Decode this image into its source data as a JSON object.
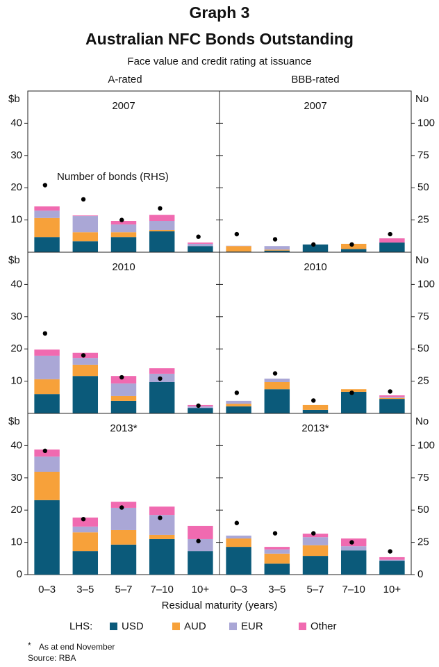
{
  "title": "Graph 3",
  "subtitle": "Australian NFC Bonds Outstanding",
  "note": "Face value and credit rating at issuance",
  "columns": [
    "A-rated",
    "BBB-rated"
  ],
  "xlabel": "Residual maturity (years)",
  "legend": {
    "label": "LHS:",
    "items": [
      {
        "name": "USD",
        "color": "#0b5a7a"
      },
      {
        "name": "AUD",
        "color": "#f7a13a"
      },
      {
        "name": "EUR",
        "color": "#aaa7d6"
      },
      {
        "name": "Other",
        "color": "#f06ab0"
      }
    ]
  },
  "footnote_mark": "*",
  "footnote": "As at end November",
  "source": "Source: RBA",
  "chart_data": [
    {
      "type": "bar",
      "stacked": true,
      "title": "2007",
      "ylabel": "$b",
      "ylim": [
        0,
        50
      ],
      "yticks": [
        10,
        20,
        30,
        40
      ],
      "y2lim": [
        0,
        125
      ],
      "annotation": "Number of bonds (RHS)",
      "series": [
        {
          "values": [
            4.7,
            3.4,
            4.7,
            6.5,
            1.9
          ]
        },
        {
          "values": [
            5.9,
            2.8,
            1.5,
            0.4,
            0
          ]
        },
        {
          "values": [
            2.3,
            5.0,
            2.4,
            2.8,
            0.7
          ]
        },
        {
          "values": [
            1.3,
            0.2,
            1.1,
            1.9,
            0.4
          ]
        }
      ],
      "bonds": {
        "axis": "y2",
        "color": "#000000",
        "values": [
          52,
          41,
          25,
          34,
          12
        ]
      }
    },
    {
      "type": "bar",
      "stacked": true,
      "title": "2007",
      "y2label": "No",
      "ylim": [
        0,
        50
      ],
      "y2lim": [
        0,
        125
      ],
      "y2ticks": [
        25,
        50,
        75,
        100
      ],
      "series": [
        {
          "values": [
            0.2,
            0.5,
            2.4,
            1.0,
            3.0
          ]
        },
        {
          "values": [
            1.7,
            0.3,
            0,
            1.6,
            0
          ]
        },
        {
          "values": [
            0.1,
            1.1,
            0,
            0,
            0
          ]
        },
        {
          "values": [
            0,
            0,
            0,
            0,
            1.3
          ]
        }
      ],
      "bonds": {
        "axis": "y2",
        "color": "#000000",
        "values": [
          14,
          10,
          6,
          6,
          14
        ]
      }
    },
    {
      "type": "bar",
      "stacked": true,
      "title": "2010",
      "ylabel": "$b",
      "ylim": [
        0,
        50
      ],
      "yticks": [
        10,
        20,
        30,
        40
      ],
      "y2lim": [
        0,
        125
      ],
      "series": [
        {
          "values": [
            6.0,
            11.6,
            3.9,
            9.7,
            1.7
          ]
        },
        {
          "values": [
            4.6,
            3.5,
            1.5,
            0,
            0
          ]
        },
        {
          "values": [
            7.3,
            2.1,
            3.9,
            2.6,
            0.5
          ]
        },
        {
          "values": [
            1.9,
            1.6,
            2.3,
            1.7,
            0.4
          ]
        }
      ],
      "bonds": {
        "axis": "y2",
        "color": "#000000",
        "values": [
          62,
          45,
          28,
          27,
          6
        ]
      }
    },
    {
      "type": "bar",
      "stacked": true,
      "title": "2010",
      "y2label": "No",
      "ylim": [
        0,
        50
      ],
      "y2lim": [
        0,
        125
      ],
      "y2ticks": [
        25,
        50,
        75,
        100
      ],
      "series": [
        {
          "values": [
            2.2,
            7.5,
            1.1,
            6.7,
            4.5
          ]
        },
        {
          "values": [
            0.8,
            2.2,
            1.5,
            0.8,
            0.3
          ]
        },
        {
          "values": [
            0.9,
            1.1,
            0,
            0,
            0.3
          ]
        },
        {
          "values": [
            0,
            0,
            0,
            0,
            0.5
          ]
        }
      ],
      "bonds": {
        "axis": "y2",
        "color": "#000000",
        "values": [
          16,
          31,
          10,
          16,
          17
        ]
      }
    },
    {
      "type": "bar",
      "stacked": true,
      "title": "2013*",
      "ylabel": "$b",
      "ylim": [
        0,
        50
      ],
      "yticks": [
        0,
        10,
        20,
        30,
        40
      ],
      "y2lim": [
        0,
        125
      ],
      "categories": [
        "0–3",
        "3–5",
        "5–7",
        "7–10",
        "10+"
      ],
      "series": [
        {
          "values": [
            23.1,
            7.3,
            9.3,
            11.0,
            7.3
          ]
        },
        {
          "values": [
            8.8,
            5.8,
            4.5,
            1.3,
            0
          ]
        },
        {
          "values": [
            4.7,
            1.8,
            6.9,
            6.2,
            3.7
          ]
        },
        {
          "values": [
            2.2,
            2.8,
            1.9,
            2.6,
            4.1
          ]
        }
      ],
      "bonds": {
        "axis": "y2",
        "color": "#000000",
        "values": [
          96,
          43,
          52,
          44,
          26
        ]
      }
    },
    {
      "type": "bar",
      "stacked": true,
      "title": "2013*",
      "y2label": "No",
      "ylim": [
        0,
        50
      ],
      "y2lim": [
        0,
        125
      ],
      "y2ticks": [
        0,
        25,
        50,
        75,
        100
      ],
      "categories": [
        "0–3",
        "3–5",
        "5–7",
        "7–10",
        "10+"
      ],
      "series": [
        {
          "values": [
            8.6,
            3.4,
            5.8,
            7.5,
            4.3
          ]
        },
        {
          "values": [
            2.6,
            3.1,
            3.3,
            0,
            0
          ]
        },
        {
          "values": [
            0.9,
            1.3,
            2.5,
            1.3,
            0.3
          ]
        },
        {
          "values": [
            0,
            0.8,
            1.1,
            2.4,
            0.8
          ]
        }
      ],
      "bonds": {
        "axis": "y2",
        "color": "#000000",
        "values": [
          40,
          32,
          32,
          25,
          18
        ]
      }
    }
  ]
}
